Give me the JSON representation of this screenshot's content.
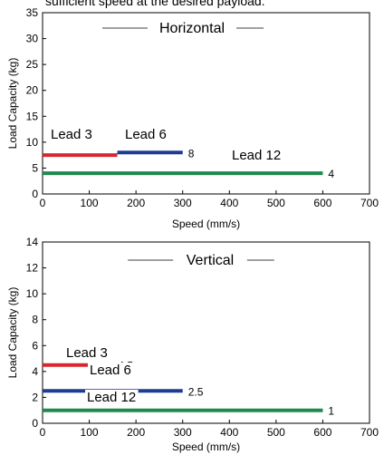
{
  "caption": "sufficient speed at the desired payload.",
  "chart_data": [
    {
      "type": "line",
      "title": "Horizontal",
      "xlabel": "Speed (mm/s)",
      "ylabel": "Load Capacity (kg)",
      "xlim": [
        0,
        700
      ],
      "ylim": [
        0,
        35
      ],
      "xticks": [
        "0",
        "100",
        "200",
        "300",
        "400",
        "500",
        "600",
        "700"
      ],
      "yticks": [
        "0",
        "5",
        "10",
        "15",
        "20",
        "25",
        "30",
        "35"
      ],
      "series": [
        {
          "name": "Lead 3",
          "color": "#d9262e",
          "x": [
            0,
            160
          ],
          "y": [
            7.5,
            7.5
          ]
        },
        {
          "name": "Lead 6",
          "color": "#1f3c95",
          "x": [
            160,
            300
          ],
          "y": [
            8,
            8
          ],
          "value_label": "8"
        },
        {
          "name": "Lead 12",
          "color": "#1e8a4e",
          "x": [
            0,
            600
          ],
          "y": [
            4,
            4
          ],
          "value_label": "4"
        }
      ]
    },
    {
      "type": "line",
      "title": "Vertical",
      "xlabel": "Speed (mm/s)",
      "ylabel": "Load Capacity (kg)",
      "xlim": [
        0,
        700
      ],
      "ylim": [
        0,
        14
      ],
      "xticks": [
        "0",
        "100",
        "200",
        "300",
        "400",
        "500",
        "600",
        "700"
      ],
      "yticks": [
        "0",
        "2",
        "4",
        "6",
        "8",
        "10",
        "12",
        "14"
      ],
      "series": [
        {
          "name": "Lead 3",
          "color": "#d9262e",
          "x": [
            0,
            150
          ],
          "y": [
            4.5,
            4.5
          ],
          "value_label": "4.5"
        },
        {
          "name": "Lead 6",
          "color": "#1f3c95",
          "x": [
            0,
            300
          ],
          "y": [
            2.5,
            2.5
          ],
          "value_label": "2.5"
        },
        {
          "name": "Lead 12",
          "color": "#1e8a4e",
          "x": [
            0,
            600
          ],
          "y": [
            1,
            1
          ],
          "value_label": "1"
        }
      ]
    }
  ]
}
